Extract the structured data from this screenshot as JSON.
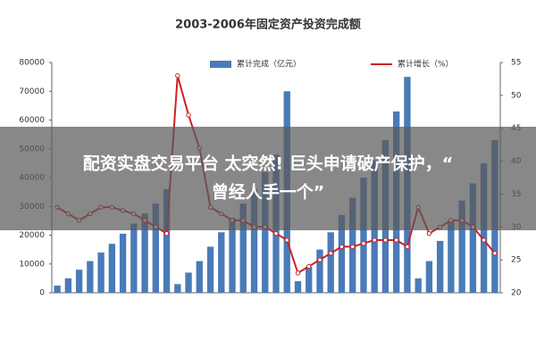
{
  "chart_data": {
    "type": "bar",
    "title": "2003-2006年固定资产投资完成额",
    "categories": [
      null,
      null,
      null,
      null,
      null,
      null,
      null,
      null,
      null,
      null,
      null,
      null,
      null,
      null,
      null,
      null,
      null,
      null,
      null,
      null,
      null,
      null,
      null,
      null,
      null,
      null,
      null,
      null,
      null,
      null,
      null,
      null,
      null,
      null,
      null,
      null,
      null,
      null,
      null,
      null,
      null
    ],
    "series": [
      {
        "name": "累计完成（亿元）",
        "color": "#4a7bb8",
        "type": "bar",
        "values": [
          2500,
          5000,
          8000,
          11000,
          14000,
          17000,
          20500,
          24000,
          27500,
          31000,
          36000,
          3000,
          7000,
          11000,
          16000,
          21000,
          26000,
          31000,
          36000,
          42000,
          48000,
          70000,
          4000,
          9000,
          15000,
          21000,
          27000,
          33000,
          40000,
          46000,
          53000,
          63000,
          75000,
          5000,
          11000,
          18000,
          25000,
          32000,
          38000,
          45000,
          53000
        ]
      },
      {
        "name": "累计增长（%）",
        "color": "#cc2222",
        "type": "line",
        "axis": "y2",
        "values": [
          33,
          32,
          31,
          32,
          33,
          33,
          32.5,
          32,
          31,
          30,
          29,
          53,
          47,
          42,
          33,
          32,
          31,
          31,
          30,
          30,
          29,
          28,
          23,
          24,
          25,
          26,
          27,
          27,
          27.5,
          28,
          28,
          28,
          27,
          33,
          29,
          30,
          31,
          31,
          30,
          28,
          26
        ]
      }
    ],
    "ylim": [
      0,
      80000
    ],
    "yticks": [
      0,
      10000,
      20000,
      30000,
      40000,
      50000,
      60000,
      70000,
      80000
    ],
    "y2lim": [
      20,
      55
    ],
    "y2ticks": [
      20,
      25,
      30,
      35,
      40,
      45,
      50,
      55
    ]
  },
  "overlay": {
    "lines": [
      "配资实盘交易平台 太突然! 巨头申请破产保护，“",
      "曾经人手一个”"
    ]
  }
}
